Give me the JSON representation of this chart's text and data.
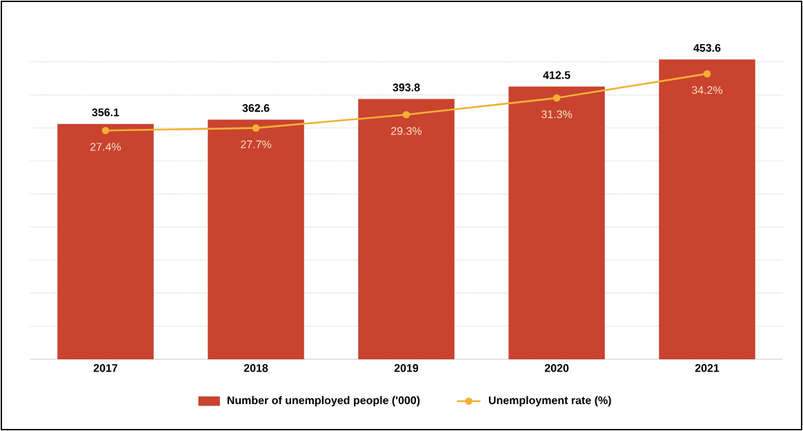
{
  "chart_data": {
    "type": "bar",
    "categories": [
      "2017",
      "2018",
      "2019",
      "2020",
      "2021"
    ],
    "series": [
      {
        "name": "Number of unemployed people ('000)",
        "color": "#c9432f",
        "values": [
          356.1,
          362.6,
          393.8,
          412.5,
          453.6
        ],
        "value_labels": [
          "356.1",
          "362.6",
          "393.8",
          "412.5",
          "453.6"
        ]
      },
      {
        "name": "Unemployment rate (%)",
        "type": "line",
        "axis": "y2",
        "color": "#f2b134",
        "values": [
          27.4,
          27.7,
          29.3,
          31.3,
          34.2
        ],
        "value_labels": [
          "27.4%",
          "27.7%",
          "29.3%",
          "31.3%",
          "34.2%"
        ]
      }
    ],
    "grid": "y",
    "legend": "bottom",
    "tick_labels": "x",
    "marker": "circle"
  }
}
